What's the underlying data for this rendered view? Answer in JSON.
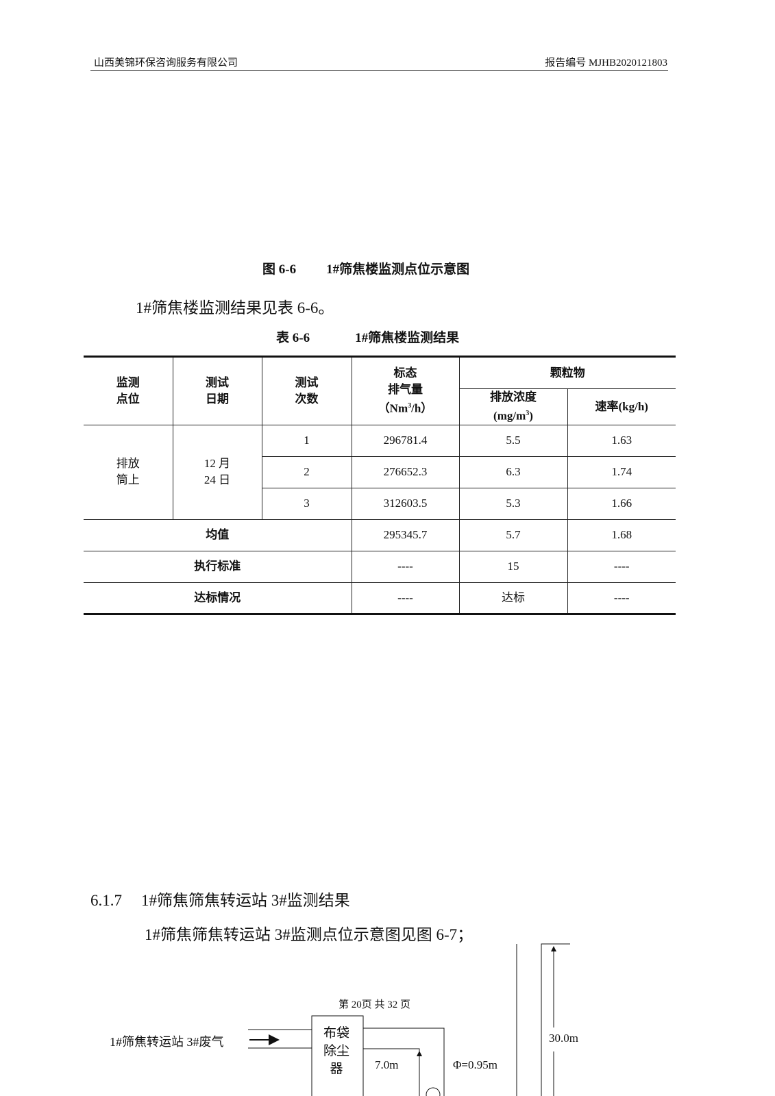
{
  "header": {
    "company": "山西美锦环保咨询服务有限公司",
    "report_no": "报告编号 MJHB2020121803"
  },
  "figure_caption": {
    "number": "图 6-6",
    "title": "1#筛焦楼监测点位示意图"
  },
  "intro": "1#筛焦楼监测结果见表 6-6。",
  "table_caption": {
    "number": "表 6-6",
    "title": "1#筛焦楼监测结果"
  },
  "table": {
    "headers": {
      "point": [
        "监测",
        "点位"
      ],
      "date": [
        "测试",
        "日期"
      ],
      "count": [
        "测试",
        "次数"
      ],
      "flow": [
        "标态",
        "排气量",
        "（Nm",
        "3",
        "/h）"
      ],
      "pm": "颗粒物",
      "conc": [
        "排放浓度",
        "(mg/m",
        "3",
        ")"
      ],
      "rate": "速率(kg/h)"
    },
    "point": [
      "排放",
      "筒上"
    ],
    "date": [
      "12 月",
      "24 日"
    ],
    "rows": [
      {
        "n": "1",
        "flow": "296781.4",
        "conc": "5.5",
        "rate": "1.63"
      },
      {
        "n": "2",
        "flow": "276652.3",
        "conc": "6.3",
        "rate": "1.74"
      },
      {
        "n": "3",
        "flow": "312603.5",
        "conc": "5.3",
        "rate": "1.66"
      }
    ],
    "mean": {
      "label": "均值",
      "flow": "295345.7",
      "conc": "5.7",
      "rate": "1.68"
    },
    "standard": {
      "label": "执行标准",
      "flow": "----",
      "conc": "15",
      "rate": "----"
    },
    "compliance": {
      "label": "达标情况",
      "flow": "----",
      "conc": "达标",
      "rate": "----"
    }
  },
  "section": {
    "number": "6.1.7",
    "title": "1#筛焦筛焦转运站 3#监测结果"
  },
  "section_para": "1#筛焦筛焦转运站 3#监测点位示意图见图 6-7；",
  "footer": "第 20页  共 32 页",
  "diagram": {
    "inlet": "1#筛焦转运站 3#废气",
    "filter": [
      "布袋",
      "除尘",
      "器"
    ],
    "height1": "7.0m",
    "diameter": "Φ=0.95m",
    "height2": "30.0m"
  }
}
